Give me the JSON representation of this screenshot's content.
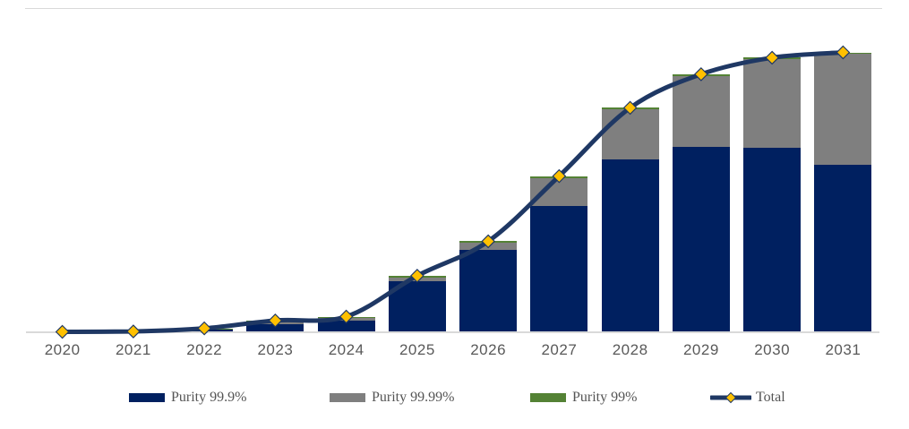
{
  "chart_data": {
    "type": "bar",
    "subtype": "stacked-bar-with-line-overlay",
    "title": "",
    "xlabel": "",
    "ylabel": "",
    "value_axis_visible": false,
    "grid": false,
    "legend_position": "bottom",
    "units_note": "no value axis shown; values are relative index, 2031 total = 100",
    "ylim": [
      0,
      105
    ],
    "categories": [
      "2020",
      "2021",
      "2022",
      "2023",
      "2024",
      "2025",
      "2026",
      "2027",
      "2028",
      "2029",
      "2030",
      "2031"
    ],
    "series": [
      {
        "name": "Purity 99.9%",
        "type": "bar",
        "color": "#002060",
        "values": [
          0.1,
          0.2,
          0.9,
          3.0,
          4.3,
          18.2,
          29.3,
          45.0,
          61.9,
          66.4,
          65.8,
          60.0
        ]
      },
      {
        "name": "Purity 99.99%",
        "type": "bar",
        "color": "#7f7f7f",
        "values": [
          0,
          0.1,
          0,
          0.7,
          0.8,
          1.4,
          2.6,
          10.2,
          17.7,
          25.2,
          31.7,
          39.4
        ]
      },
      {
        "name": "Purity 99%",
        "type": "bar",
        "color": "#548235",
        "values": [
          0,
          0,
          0.5,
          0.5,
          0.5,
          0.6,
          0.6,
          0.6,
          0.6,
          0.6,
          0.6,
          0.6
        ]
      },
      {
        "name": "Total",
        "type": "line",
        "color": "#1f3864",
        "marker": "diamond",
        "marker_color": "#ffc000",
        "values": [
          0.1,
          0.3,
          1.4,
          4.2,
          5.6,
          20.2,
          32.5,
          55.8,
          80.2,
          92.2,
          98.1,
          100
        ]
      }
    ],
    "axis_line_color": "#d9d9d9",
    "axis_label_color": "#595959"
  }
}
